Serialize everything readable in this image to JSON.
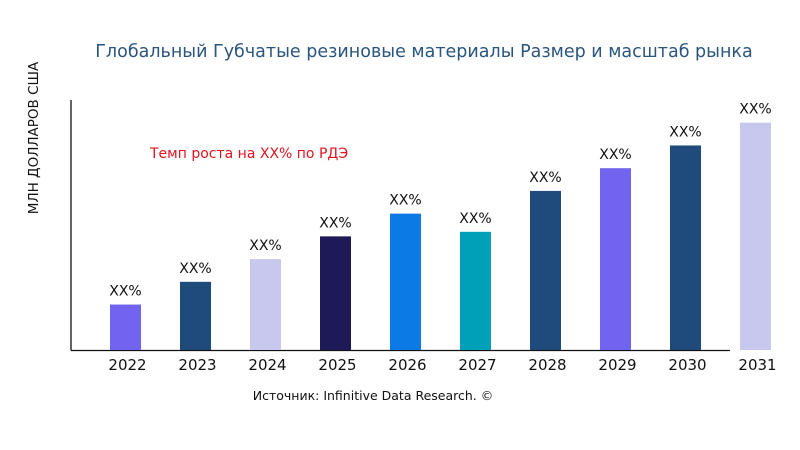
{
  "chart_data": {
    "type": "bar",
    "title": "Глобальный Губчатые резиновые материалы Размер и масштаб рынка",
    "ylabel": "МЛН ДОЛЛАРОВ США",
    "xlabel": "",
    "categories": [
      "2022",
      "2023",
      "2024",
      "2025",
      "2026",
      "2027",
      "2028",
      "2029",
      "2030",
      "2031"
    ],
    "values": [
      20,
      30,
      40,
      50,
      60,
      52,
      70,
      80,
      90,
      100
    ],
    "data_labels": [
      "XX%",
      "XX%",
      "XX%",
      "XX%",
      "XX%",
      "XX%",
      "XX%",
      "XX%",
      "XX%",
      "XX%"
    ],
    "colors": [
      "#7165f0",
      "#1f4b7a",
      "#c8c8ee",
      "#1e1a58",
      "#0b7ae4",
      "#00a0b8",
      "#1f4b7a",
      "#7165f0",
      "#1f4b7a",
      "#c8c8ee"
    ],
    "ylim": [
      0,
      110
    ],
    "grid": false,
    "annotation": "Темп роста на XX% по РДЭ",
    "source": "Источник: Infinitive Data Research. ©"
  }
}
